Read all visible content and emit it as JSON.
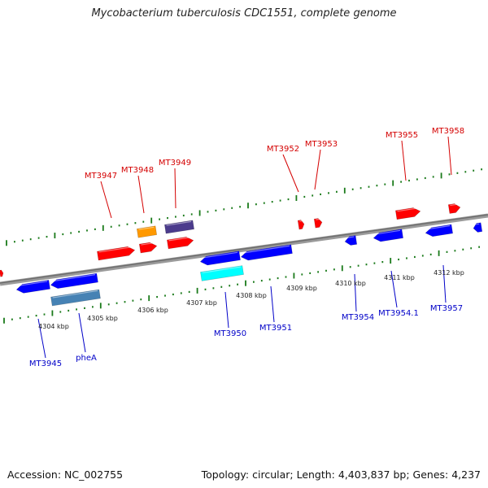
{
  "title": "Mycobacterium tuberculosis CDC1551, complete genome",
  "footer": {
    "accession": "Accession: NC_002755",
    "summary": "Topology: circular; Length: 4,403,837 bp; Genes: 4,237"
  },
  "colors": {
    "backbone": "#808080",
    "forward_label": "#d40000",
    "reverse_label": "#0000c8",
    "tick": "#1a7a1a"
  },
  "kbp_labels": [
    "4304 kbp",
    "4305 kbp",
    "4306 kbp",
    "4307 kbp",
    "4308 kbp",
    "4309 kbp",
    "4310 kbp",
    "4311 kbp",
    "4312 kbp"
  ],
  "forward_genes": [
    {
      "label": "MT3947",
      "color": "#ff0000"
    },
    {
      "label": "MT3948",
      "color": "#ff0000"
    },
    {
      "label": "MT3949",
      "color": "#ff0000"
    },
    {
      "label": "MT3952",
      "color": "#ff0000"
    },
    {
      "label": "MT3953",
      "color": "#ff0000"
    },
    {
      "label": "MT3955",
      "color": "#ff0000"
    },
    {
      "label": "MT3958",
      "color": "#ff0000"
    }
  ],
  "reverse_genes": [
    {
      "label": "MT3945",
      "color": "#0000ff"
    },
    {
      "label": "pheA",
      "color": "#0000ff"
    },
    {
      "label": "MT3950",
      "color": "#0000ff"
    },
    {
      "label": "MT3951",
      "color": "#0000ff"
    },
    {
      "label": "MT3954",
      "color": "#0000ff"
    },
    {
      "label": "MT3954.1",
      "color": "#0000ff"
    },
    {
      "label": "MT3957",
      "color": "#0000ff"
    }
  ],
  "feature_colors": {
    "orange": "#ff9900",
    "dark_purple": "#4b3b8c",
    "steel_blue": "#4682b4",
    "cyan": "#00ffff"
  }
}
